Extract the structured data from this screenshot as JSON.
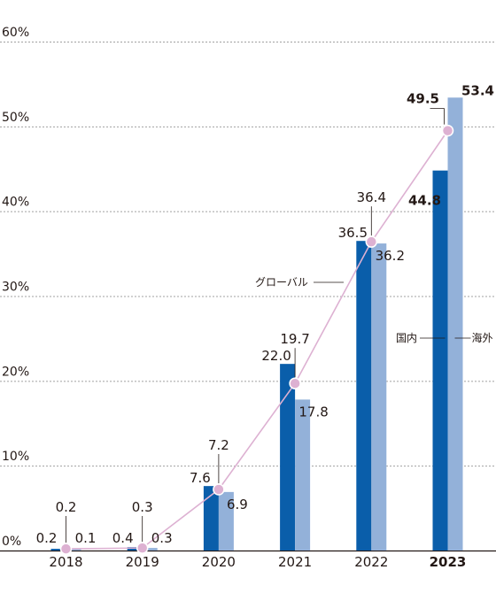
{
  "chart_data": {
    "type": "bar",
    "categories": [
      "2018",
      "2019",
      "2020",
      "2021",
      "2022",
      "2023"
    ],
    "highlight_category": "2023",
    "yticks": [
      "0%",
      "10%",
      "20%",
      "30%",
      "40%",
      "50%",
      "60%"
    ],
    "ylim": [
      0,
      60
    ],
    "grid": true,
    "series": [
      {
        "name": "国内",
        "type": "bar",
        "color": "#0a5eaa",
        "values": [
          0.2,
          0.4,
          7.6,
          22.0,
          36.5,
          44.8
        ],
        "labels": [
          "0.2",
          "0.4",
          "7.6",
          "22.0",
          "36.5",
          "44.8"
        ]
      },
      {
        "name": "海外",
        "type": "bar",
        "color": "#93b1d9",
        "values": [
          0.1,
          0.3,
          6.9,
          17.8,
          36.2,
          53.4
        ],
        "labels": [
          "0.1",
          "0.3",
          "6.9",
          "17.8",
          "36.2",
          "53.4"
        ]
      },
      {
        "name": "グローバル",
        "type": "line",
        "color": "#ddb1d2",
        "values": [
          0.2,
          0.3,
          7.2,
          19.7,
          36.4,
          49.5
        ],
        "labels": [
          "0.2",
          "0.3",
          "7.2",
          "19.7",
          "36.4",
          "49.5"
        ]
      }
    ]
  }
}
